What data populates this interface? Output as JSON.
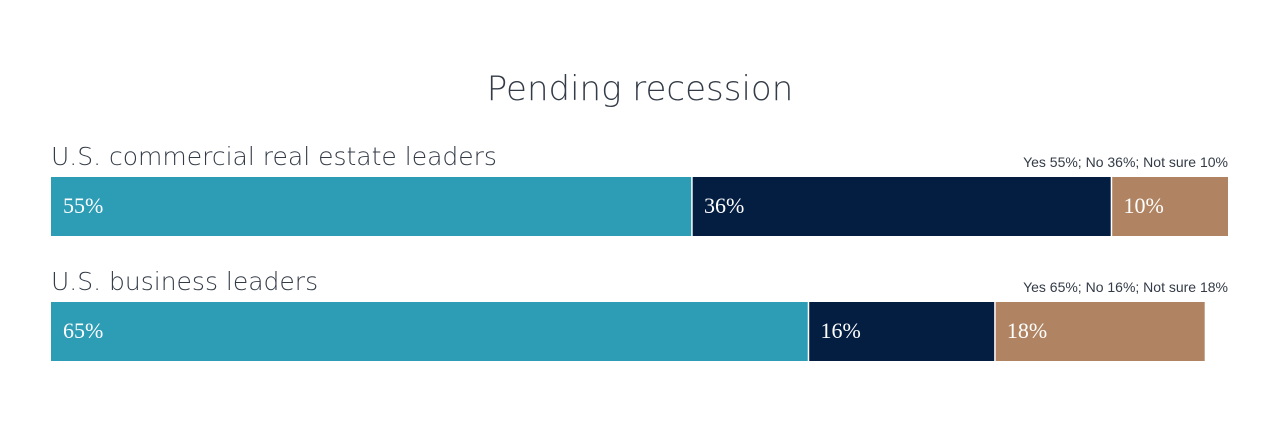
{
  "chart_data": {
    "type": "bar",
    "orientation": "horizontal",
    "stacked": true,
    "title": "Pending recession",
    "xlim": [
      0,
      101
    ],
    "categories": [
      "U.S. commercial real estate leaders",
      "U.S. business leaders"
    ],
    "summaries": [
      "Yes 55%; No 36%; Not sure 10%",
      "Yes 65%; No 16%; Not sure 18%"
    ],
    "series": [
      {
        "key": "yes",
        "color": "#2d9cb5",
        "values": [
          55,
          65
        ],
        "labels": [
          "55%",
          "65%"
        ]
      },
      {
        "key": "no",
        "color": "#041e42",
        "values": [
          36,
          16
        ],
        "labels": [
          "36%",
          "16%"
        ]
      },
      {
        "key": "not_sure",
        "color": "#b08462",
        "values": [
          10,
          18
        ],
        "labels": [
          "10%",
          "18%"
        ]
      }
    ],
    "grid": false,
    "legend": "none"
  }
}
